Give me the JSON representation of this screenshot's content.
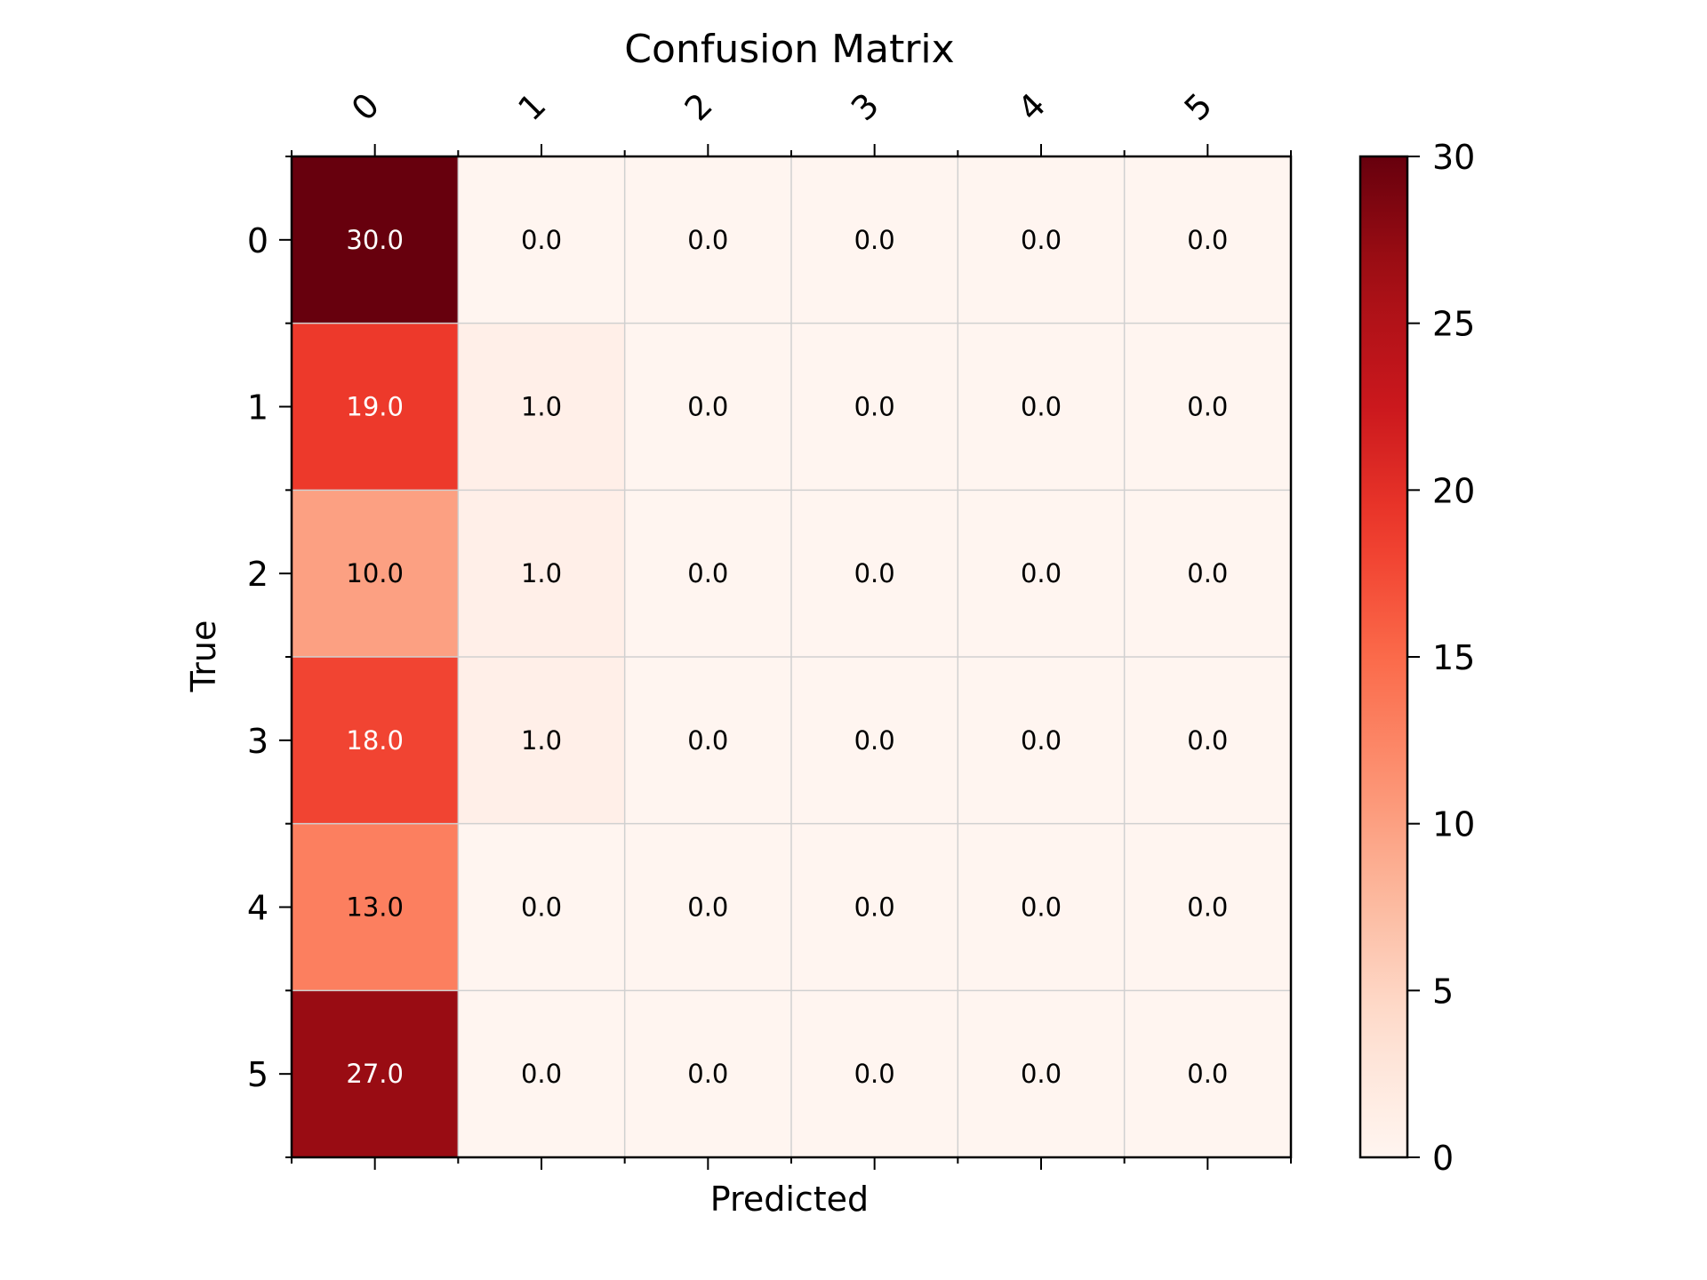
{
  "chart_data": {
    "type": "heatmap",
    "title": "Confusion Matrix",
    "xlabel": "Predicted",
    "ylabel": "True",
    "x_categories": [
      "0",
      "1",
      "2",
      "3",
      "4",
      "5"
    ],
    "y_categories": [
      "0",
      "1",
      "2",
      "3",
      "4",
      "5"
    ],
    "values": [
      [
        30.0,
        0.0,
        0.0,
        0.0,
        0.0,
        0.0
      ],
      [
        19.0,
        1.0,
        0.0,
        0.0,
        0.0,
        0.0
      ],
      [
        10.0,
        1.0,
        0.0,
        0.0,
        0.0,
        0.0
      ],
      [
        18.0,
        1.0,
        0.0,
        0.0,
        0.0,
        0.0
      ],
      [
        13.0,
        0.0,
        0.0,
        0.0,
        0.0,
        0.0
      ],
      [
        27.0,
        0.0,
        0.0,
        0.0,
        0.0,
        0.0
      ]
    ],
    "cell_labels": [
      [
        "30.0",
        "0.0",
        "0.0",
        "0.0",
        "0.0",
        "0.0"
      ],
      [
        "19.0",
        "1.0",
        "0.0",
        "0.0",
        "0.0",
        "0.0"
      ],
      [
        "10.0",
        "1.0",
        "0.0",
        "0.0",
        "0.0",
        "0.0"
      ],
      [
        "18.0",
        "1.0",
        "0.0",
        "0.0",
        "0.0",
        "0.0"
      ],
      [
        "13.0",
        "0.0",
        "0.0",
        "0.0",
        "0.0",
        "0.0"
      ],
      [
        "27.0",
        "0.0",
        "0.0",
        "0.0",
        "0.0",
        "0.0"
      ]
    ],
    "value_range": [
      0,
      30
    ],
    "colormap": "Reds",
    "colorbar": {
      "ticks": [
        0,
        5,
        10,
        15,
        20,
        25,
        30
      ],
      "tick_labels": [
        "0",
        "5",
        "10",
        "15",
        "20",
        "25",
        "30"
      ],
      "placement": "right"
    },
    "grid": true,
    "x_axis_position": "top",
    "x_tick_rotation": -45
  }
}
